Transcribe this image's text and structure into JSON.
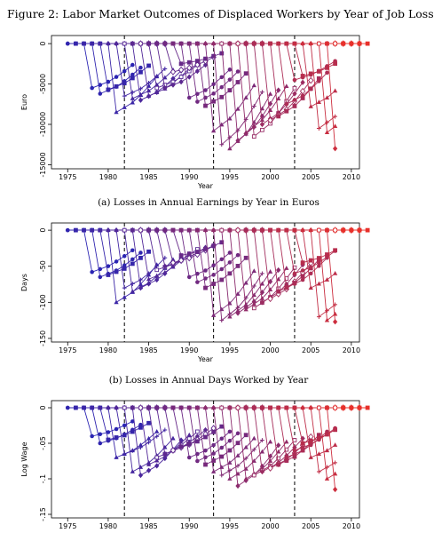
{
  "figure_title": "Figure 2:  Labor Market Outcomes of Displaced Workers by Year of Job Loss",
  "chart_data": [
    {
      "type": "line",
      "id": "a",
      "caption": "(a) Losses in Annual Earnings by Year in Euros",
      "xlabel": "Year",
      "ylabel": "Euro",
      "xlim": [
        1973,
        2011
      ],
      "ylim": [
        -15500,
        1000
      ],
      "xticks": [
        1975,
        1980,
        1985,
        1990,
        1995,
        2000,
        2005,
        2010
      ],
      "yticks": [
        0,
        -5000,
        -10000,
        -15000
      ],
      "ytick_labels": [
        "0",
        "-5000",
        "-10000",
        "-15000"
      ],
      "vlines": [
        1982,
        1993,
        2003
      ],
      "trough": [
        -5500,
        -6200,
        -5700,
        -8500,
        -6500,
        -6800,
        -7000,
        -6500,
        -5500,
        -5500,
        -3500,
        -2500,
        -6700,
        -7200,
        -7700,
        -10800,
        -12500,
        -13000,
        -12000,
        -11000,
        -11500,
        -10000,
        -9500,
        -9000,
        -7500,
        -4500,
        -4000,
        -7800,
        -10500,
        -11000,
        -13000,
        -12500,
        -10500,
        -9000,
        -8000,
        -4500
      ],
      "color_start": "#2b25b3",
      "color_end": "#e8302a"
    },
    {
      "type": "line",
      "id": "b",
      "caption": "(b) Losses in Annual Days Worked by Year",
      "xlabel": "Year",
      "ylabel": "Days",
      "xlim": [
        1973,
        2011
      ],
      "ylim": [
        -155,
        10
      ],
      "xticks": [
        1975,
        1980,
        1985,
        1990,
        1995,
        2000,
        2005,
        2010
      ],
      "yticks": [
        0,
        -50,
        -100,
        -150
      ],
      "ytick_labels": [
        "0",
        "-50",
        "-100",
        "-150"
      ],
      "vlines": [
        1982,
        1993,
        2003
      ],
      "trough": [
        -58,
        -65,
        -62,
        -100,
        -80,
        -85,
        -80,
        -68,
        -55,
        -50,
        -45,
        -35,
        -65,
        -72,
        -80,
        -118,
        -125,
        -120,
        -115,
        -110,
        -108,
        -100,
        -95,
        -85,
        -80,
        -60,
        -45,
        -80,
        -120,
        -125,
        -127,
        -110,
        -100,
        -92,
        -80,
        -40
      ],
      "color_start": "#2b25b3",
      "color_end": "#e8302a"
    },
    {
      "type": "line",
      "id": "c",
      "caption": "",
      "xlabel": "",
      "ylabel": "Log Wage",
      "xlim": [
        1973,
        2011
      ],
      "ylim": [
        -0.155,
        0.01
      ],
      "xticks": [
        1975,
        1980,
        1985,
        1990,
        1995,
        2000,
        2005,
        2010
      ],
      "yticks": [
        0,
        -0.05,
        -0.1,
        -0.15
      ],
      "ytick_labels": [
        "0",
        "-.05",
        "-.1",
        "-.15"
      ],
      "vlines": [
        1982,
        1993,
        2003
      ],
      "trough": [
        -0.04,
        -0.05,
        -0.045,
        -0.07,
        -0.065,
        -0.09,
        -0.095,
        -0.08,
        -0.07,
        -0.065,
        -0.06,
        -0.055,
        -0.07,
        -0.075,
        -0.08,
        -0.09,
        -0.095,
        -0.1,
        -0.11,
        -0.1,
        -0.095,
        -0.09,
        -0.085,
        -0.08,
        -0.07,
        -0.06,
        -0.05,
        -0.07,
        -0.09,
        -0.1,
        -0.115,
        -0.12,
        -0.125,
        -0.12,
        -0.07,
        -0.05
      ],
      "color_start": "#2b25b3",
      "color_end": "#e8302a"
    }
  ]
}
